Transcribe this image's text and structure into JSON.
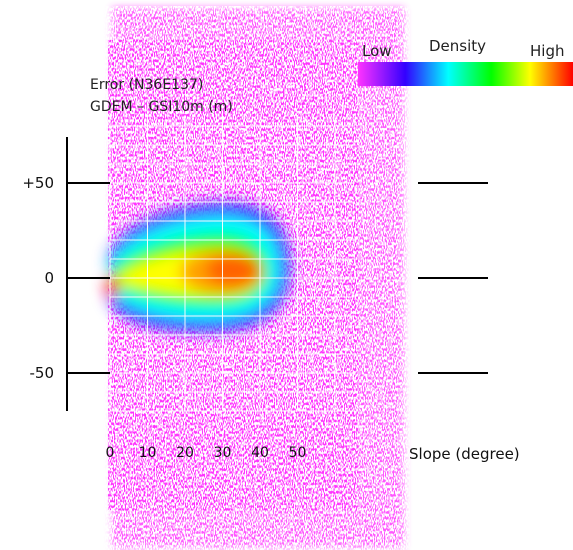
{
  "chart_data": {
    "type": "heatmap",
    "title_lines": [
      "Error (N36E137)",
      "GDEM – GSI10m (m)"
    ],
    "xlabel": "Slope (degree)",
    "x_ticks": [
      "0",
      "10",
      "20",
      "30",
      "40",
      "50"
    ],
    "y_ticks": [
      "+50",
      "0",
      "-50"
    ],
    "xlim": [
      0,
      75
    ],
    "ylim": [
      -70,
      75
    ],
    "colorbar": {
      "title": "Density",
      "low_label": "Low",
      "high_label": "High",
      "colors": [
        "#ff33ff",
        "#0000ff",
        "#00ffff",
        "#00ff00",
        "#ffff00",
        "#ff0000"
      ]
    },
    "density_peak": {
      "slope": 33,
      "error": 5
    },
    "grid": true
  }
}
